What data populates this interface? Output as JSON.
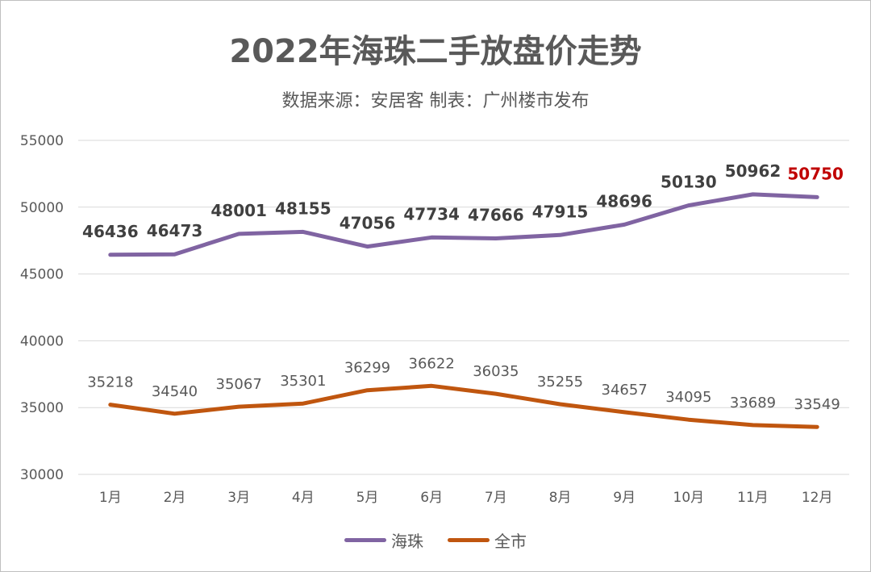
{
  "title": "2022年海珠二手放盘价走势",
  "subtitle": "数据来源：安居客    制表：广州楼市发布",
  "colors": {
    "haizhu": "#8064a2",
    "city": "#c0560f",
    "highlight": "#c00000",
    "grid": "#d9d9d9",
    "text": "#595959"
  },
  "chart_data": {
    "type": "line",
    "categories": [
      "1月",
      "2月",
      "3月",
      "4月",
      "5月",
      "6月",
      "7月",
      "8月",
      "9月",
      "10月",
      "11月",
      "12月"
    ],
    "series": [
      {
        "name": "海珠",
        "values": [
          46436,
          46473,
          48001,
          48155,
          47056,
          47734,
          47666,
          47915,
          48696,
          50130,
          50962,
          50750
        ]
      },
      {
        "name": "全市",
        "values": [
          35218,
          34540,
          35067,
          35301,
          36299,
          36622,
          36035,
          35255,
          34657,
          34095,
          33689,
          33549
        ]
      }
    ],
    "yticks": [
      "30000",
      "35000",
      "40000",
      "45000",
      "50000",
      "55000"
    ],
    "ylim": [
      30000,
      55000
    ],
    "grid": true,
    "legend_position": "bottom"
  }
}
